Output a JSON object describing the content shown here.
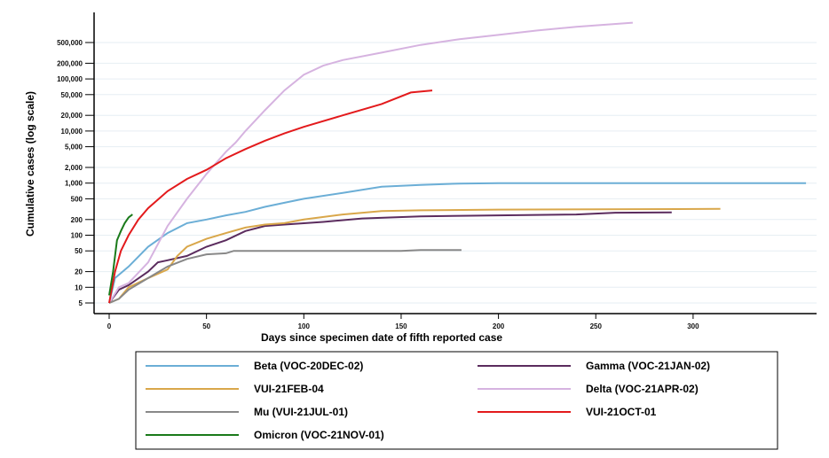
{
  "chart_data": {
    "type": "line",
    "xlabel": "Days since specimen date of fifth reported case",
    "ylabel": "Cumulative cases (log scale)",
    "yscale": "log",
    "xlim": [
      -5,
      363
    ],
    "ylim": [
      3.5,
      1500000
    ],
    "xticks": [
      0,
      50,
      100,
      150,
      200,
      250,
      300
    ],
    "xtick_labels": [
      "0",
      "50",
      "100",
      "150",
      "200",
      "250",
      "300"
    ],
    "yticks": [
      5,
      10,
      20,
      50,
      100,
      200,
      500,
      1000,
      2000,
      5000,
      10000,
      20000,
      50000,
      100000,
      200000,
      500000
    ],
    "ytick_labels": [
      "5",
      "10",
      "20",
      "50",
      "100",
      "200",
      "500",
      "1,000",
      "2,000",
      "5,000",
      "10,000",
      "20,000",
      "50,000",
      "100,000",
      "200,000",
      "500,000"
    ],
    "grid": "horizontal",
    "legend_position": "bottom",
    "series": [
      {
        "name": "Beta (VOC-20DEC-02)",
        "color": "#6baed6",
        "x": [
          0,
          3,
          10,
          20,
          30,
          40,
          50,
          60,
          70,
          80,
          90,
          100,
          120,
          140,
          160,
          180,
          200,
          358
        ],
        "y": [
          5,
          15,
          25,
          60,
          110,
          170,
          200,
          240,
          280,
          350,
          420,
          500,
          650,
          850,
          920,
          980,
          1000,
          1000
        ]
      },
      {
        "name": "Gamma (VOC-21JAN-02)",
        "color": "#5b2c5e",
        "x": [
          0,
          5,
          10,
          20,
          25,
          30,
          40,
          50,
          60,
          70,
          80,
          90,
          110,
          130,
          160,
          200,
          240,
          260,
          289
        ],
        "y": [
          5,
          9,
          11,
          20,
          30,
          33,
          40,
          60,
          80,
          120,
          150,
          160,
          180,
          210,
          230,
          240,
          250,
          270,
          275
        ]
      },
      {
        "name": "VUI-21FEB-04",
        "color": "#d9a74a",
        "x": [
          0,
          5,
          10,
          20,
          30,
          35,
          40,
          50,
          60,
          70,
          80,
          90,
          100,
          120,
          140,
          160,
          200,
          314
        ],
        "y": [
          5,
          6,
          10,
          15,
          22,
          40,
          60,
          85,
          110,
          140,
          160,
          170,
          200,
          250,
          290,
          300,
          310,
          320
        ]
      },
      {
        "name": "Delta (VOC-21APR-02)",
        "color": "#d6b3e0",
        "x": [
          0,
          5,
          10,
          20,
          30,
          40,
          50,
          60,
          65,
          70,
          80,
          90,
          100,
          110,
          120,
          140,
          160,
          180,
          200,
          220,
          240,
          269
        ],
        "y": [
          5,
          10,
          12,
          30,
          150,
          500,
          1500,
          4000,
          6000,
          10000,
          25000,
          60000,
          120000,
          180000,
          230000,
          320000,
          450000,
          580000,
          700000,
          850000,
          1000000,
          1200000
        ]
      },
      {
        "name": "Mu (VUI-21JUL-01)",
        "color": "#888888",
        "x": [
          0,
          5,
          10,
          20,
          30,
          40,
          50,
          60,
          64,
          150,
          160,
          181
        ],
        "y": [
          5,
          6,
          9,
          15,
          25,
          35,
          43,
          45,
          50,
          50,
          52,
          52
        ]
      },
      {
        "name": "VUI-21OCT-01",
        "color": "#e31a1c",
        "x": [
          0,
          3,
          6,
          10,
          15,
          20,
          30,
          40,
          50,
          60,
          70,
          80,
          90,
          100,
          120,
          140,
          155,
          166
        ],
        "y": [
          5,
          20,
          50,
          100,
          200,
          330,
          700,
          1200,
          1800,
          3000,
          4500,
          6500,
          9000,
          12000,
          20000,
          33000,
          55000,
          60000
        ]
      },
      {
        "name": "Omicron (VOC-21NOV-01)",
        "color": "#1a7a1a",
        "x": [
          0,
          2,
          4,
          6,
          8,
          10,
          12
        ],
        "y": [
          7,
          20,
          80,
          120,
          170,
          220,
          250
        ]
      }
    ]
  }
}
